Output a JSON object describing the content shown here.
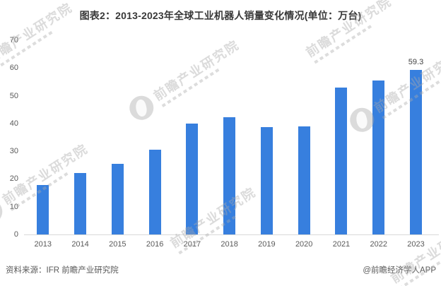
{
  "title": "图表2：2013-2023年全球工业机器人销量变化情况(单位：万台)",
  "chart_data": {
    "type": "bar",
    "title": "图表2：2013-2023年全球工业机器人销量变化情况(单位：万台)",
    "unit": "万台",
    "categories": [
      "2013",
      "2014",
      "2015",
      "2016",
      "2017",
      "2018",
      "2019",
      "2020",
      "2021",
      "2022",
      "2023"
    ],
    "values": [
      17.8,
      22.2,
      25.5,
      30.6,
      40.0,
      42.2,
      38.7,
      39.0,
      53.0,
      55.5,
      59.3
    ],
    "data_label": {
      "index": 10,
      "text": "59.3"
    },
    "xlabel": "",
    "ylabel": "",
    "ylim": [
      0,
      70
    ],
    "yticks": [
      0,
      10,
      20,
      30,
      40,
      50,
      60,
      70
    ],
    "grid": false,
    "legend": false,
    "bar_color": "#377FDE"
  },
  "watermark": {
    "text": "前瞻产业研究院"
  },
  "footer": {
    "source": "资料来源：IFR 前瞻产业研究院",
    "credit": "@前瞻经济学人APP"
  }
}
